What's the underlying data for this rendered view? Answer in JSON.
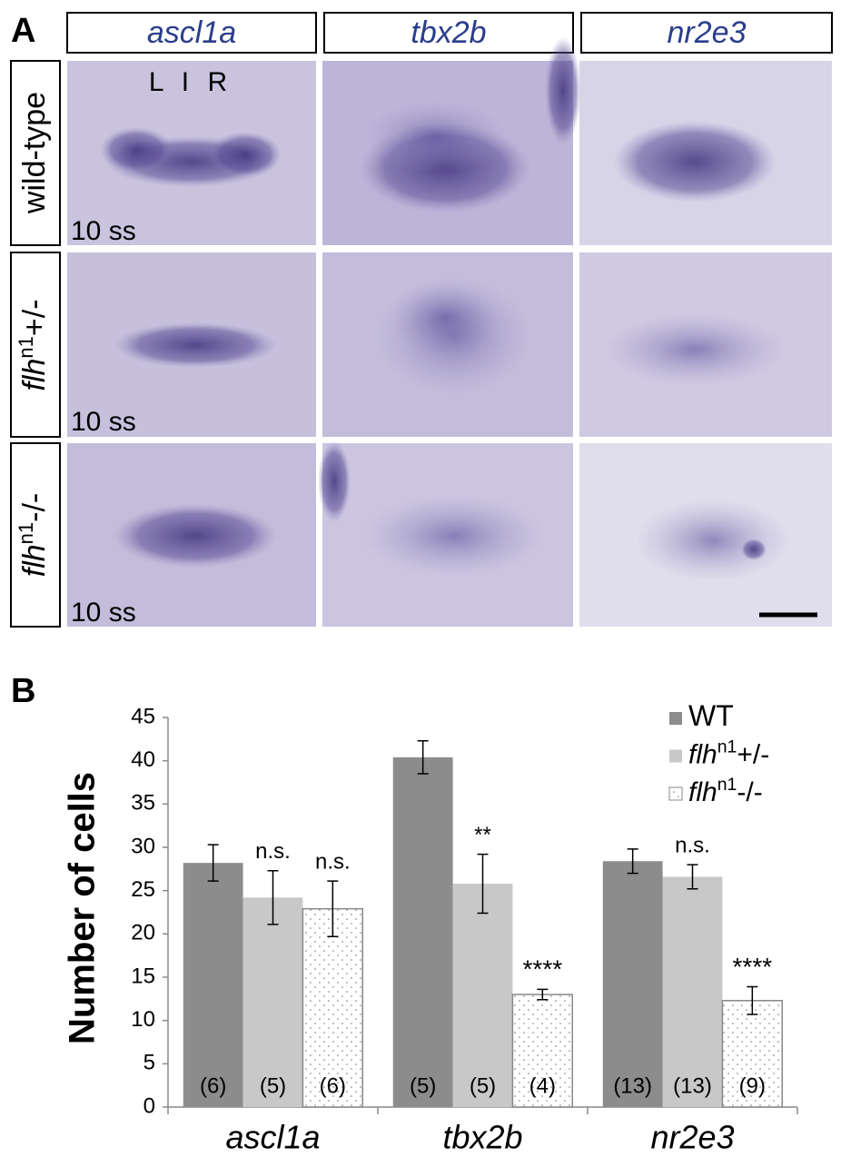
{
  "panel_a": {
    "label": "A",
    "column_headers": [
      "ascl1a",
      "tbx2b",
      "nr2e3"
    ],
    "row_labels": [
      [
        "wild-type"
      ],
      [
        "flh",
        "n1",
        "+/-"
      ],
      [
        "flh",
        "n1",
        "-/-"
      ]
    ],
    "orientation": "L I R",
    "stage_labels": [
      "10 ss",
      "10 ss",
      "10 ss"
    ]
  },
  "chart_data": {
    "type": "bar",
    "label": "B",
    "y_label": "Number of cells",
    "categories": [
      "ascl1a",
      "tbx2b",
      "nr2e3"
    ],
    "series": [
      {
        "name": [
          "WT"
        ],
        "color": "#8c8c8c",
        "pattern": "solid",
        "values": [
          28.2,
          40.4,
          28.4
        ],
        "errors": [
          2.1,
          1.9,
          1.4
        ],
        "significance": [
          null,
          null,
          null
        ],
        "n_labels": [
          "(6)",
          "(5)",
          "(13)"
        ]
      },
      {
        "name": [
          "flh",
          "n1",
          "+/-"
        ],
        "color": "#c8c8c8",
        "pattern": "solid",
        "values": [
          24.2,
          25.8,
          26.6
        ],
        "errors": [
          3.1,
          3.4,
          1.4
        ],
        "significance": [
          "n.s.",
          "**",
          "n.s."
        ],
        "n_labels": [
          "(5)",
          "(5)",
          "(13)"
        ]
      },
      {
        "name": [
          "flh",
          "n1",
          "-/-"
        ],
        "color": "#ffffff",
        "pattern": "dots",
        "values": [
          22.9,
          13.0,
          12.3
        ],
        "errors": [
          3.2,
          0.6,
          1.6
        ],
        "significance": [
          "n.s.",
          "****",
          "****"
        ],
        "n_labels": [
          "(6)",
          "(4)",
          "(9)"
        ]
      }
    ],
    "ylim": [
      0,
      45
    ],
    "yticks": [
      0,
      5,
      10,
      15,
      20,
      25,
      30,
      35,
      40,
      45
    ],
    "grid": false,
    "legend": "top-right"
  }
}
